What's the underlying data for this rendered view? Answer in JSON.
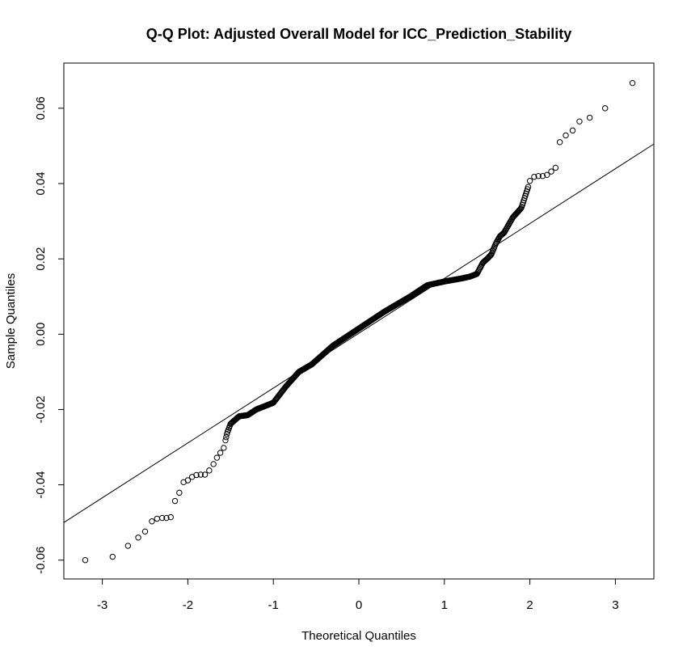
{
  "chart_data": {
    "type": "scatter",
    "title": "Q-Q Plot: Adjusted Overall Model for ICC_Prediction_Stability",
    "xlabel": "Theoretical Quantiles",
    "ylabel": "Sample Quantiles",
    "xlim": [
      -3.45,
      3.45
    ],
    "ylim": [
      -0.065,
      0.072
    ],
    "xticks": [
      -3,
      -2,
      -1,
      0,
      1,
      2,
      3
    ],
    "xtick_labels": [
      "-3",
      "-2",
      "-1",
      "0",
      "1",
      "2",
      "3"
    ],
    "yticks": [
      -0.06,
      -0.04,
      -0.02,
      0.0,
      0.02,
      0.04,
      0.06
    ],
    "ytick_labels": [
      "-0.06",
      "-0.04",
      "-0.02",
      "0.00",
      "0.02",
      "0.04",
      "0.06"
    ],
    "grid": false,
    "reference_line": {
      "points": [
        [
          -3.45,
          -0.05
        ],
        [
          3.45,
          0.0505
        ]
      ],
      "color": "#000000"
    },
    "sample_size_estimate": 420,
    "curve_knots": [
      [
        -3.2,
        -0.06
      ],
      [
        -2.88,
        -0.0591
      ],
      [
        -2.7,
        -0.0562
      ],
      [
        -2.58,
        -0.054
      ],
      [
        -2.5,
        -0.0524
      ],
      [
        -2.42,
        -0.0497
      ],
      [
        -2.36,
        -0.049
      ],
      [
        -2.3,
        -0.0488
      ],
      [
        -2.25,
        -0.0488
      ],
      [
        -2.2,
        -0.0486
      ],
      [
        -2.15,
        -0.0443
      ],
      [
        -2.1,
        -0.0421
      ],
      [
        -2.05,
        -0.0393
      ],
      [
        -1.98,
        -0.0383
      ],
      [
        -1.9,
        -0.0373
      ],
      [
        -1.8,
        -0.0372
      ],
      [
        -1.7,
        -0.0345
      ],
      [
        -1.62,
        -0.0315
      ],
      [
        -1.58,
        -0.0302
      ],
      [
        -1.54,
        -0.0262
      ],
      [
        -1.5,
        -0.0238
      ],
      [
        -1.4,
        -0.0218
      ],
      [
        -1.3,
        -0.0215
      ],
      [
        -1.2,
        -0.02
      ],
      [
        -1.0,
        -0.0182
      ],
      [
        -0.85,
        -0.0138
      ],
      [
        -0.7,
        -0.01
      ],
      [
        -0.55,
        -0.008
      ],
      [
        -0.3,
        -0.003
      ],
      [
        -0.1,
        0.0
      ],
      [
        0.0,
        0.0015
      ],
      [
        0.3,
        0.006
      ],
      [
        0.6,
        0.01
      ],
      [
        0.8,
        0.013
      ],
      [
        1.0,
        0.014
      ],
      [
        1.2,
        0.0148
      ],
      [
        1.3,
        0.0153
      ],
      [
        1.38,
        0.016
      ],
      [
        1.45,
        0.019
      ],
      [
        1.5,
        0.02
      ],
      [
        1.55,
        0.0212
      ],
      [
        1.6,
        0.024
      ],
      [
        1.65,
        0.026
      ],
      [
        1.7,
        0.027
      ],
      [
        1.8,
        0.031
      ],
      [
        1.9,
        0.0335
      ],
      [
        2.0,
        0.0405
      ],
      [
        2.05,
        0.042
      ],
      [
        2.2,
        0.0425
      ],
      [
        2.3,
        0.044
      ],
      [
        2.35,
        0.051
      ],
      [
        2.42,
        0.0528
      ],
      [
        2.5,
        0.0541
      ],
      [
        2.58,
        0.0565
      ],
      [
        2.7,
        0.0575
      ],
      [
        2.88,
        0.06
      ],
      [
        3.2,
        0.0667
      ]
    ],
    "tail_points": [
      [
        -3.2,
        -0.06
      ],
      [
        -2.88,
        -0.0591
      ],
      [
        -2.7,
        -0.0562
      ],
      [
        -2.58,
        -0.054
      ],
      [
        -2.5,
        -0.0524
      ],
      [
        -2.42,
        -0.0497
      ],
      [
        -2.36,
        -0.049
      ],
      [
        -2.3,
        -0.0488
      ],
      [
        -2.25,
        -0.0488
      ],
      [
        -2.2,
        -0.0486
      ],
      [
        -2.15,
        -0.0443
      ],
      [
        -2.1,
        -0.0421
      ],
      [
        -2.05,
        -0.0393
      ],
      [
        -2.0,
        -0.0388
      ],
      [
        -1.95,
        -0.0379
      ],
      [
        -1.9,
        -0.0374
      ],
      [
        -1.85,
        -0.0373
      ],
      [
        -1.8,
        -0.0373
      ],
      [
        -1.75,
        -0.0362
      ],
      [
        -1.7,
        -0.0345
      ],
      [
        -1.66,
        -0.0328
      ],
      [
        -1.62,
        -0.0315
      ],
      [
        -1.58,
        -0.0302
      ],
      [
        2.0,
        0.0407
      ],
      [
        2.05,
        0.0418
      ],
      [
        2.1,
        0.042
      ],
      [
        2.15,
        0.042
      ],
      [
        2.2,
        0.0423
      ],
      [
        2.25,
        0.0432
      ],
      [
        2.3,
        0.0442
      ],
      [
        2.35,
        0.051
      ],
      [
        2.42,
        0.0528
      ],
      [
        2.5,
        0.0541
      ],
      [
        2.58,
        0.0565
      ],
      [
        2.7,
        0.0575
      ],
      [
        2.88,
        0.06
      ],
      [
        3.2,
        0.0667
      ]
    ],
    "dense_range": [
      -1.56,
      1.98
    ],
    "point_color": "#000000"
  }
}
